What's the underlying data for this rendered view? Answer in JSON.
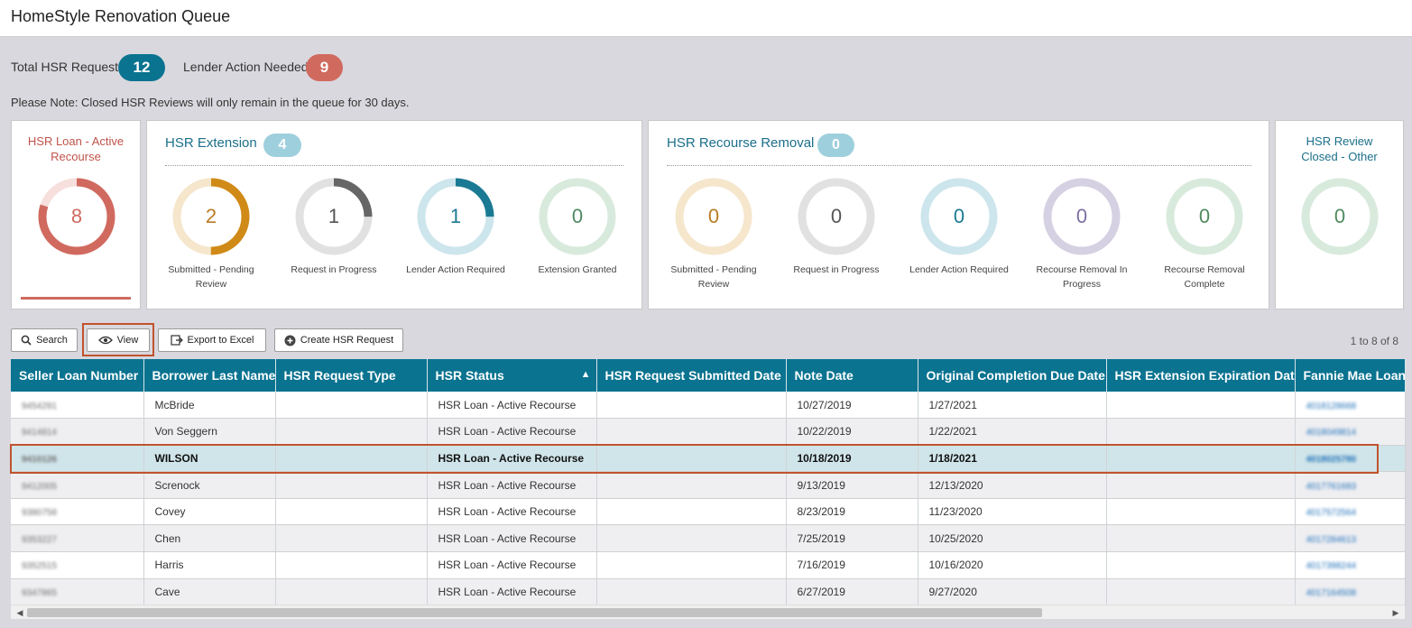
{
  "app": {
    "title": "HomeStyle Renovation Queue"
  },
  "summary": {
    "total_label": "Total HSR Requests",
    "total_count": "12",
    "lender_label": "Lender Action Needed",
    "lender_count": "9"
  },
  "note": "Please Note: Closed HSR Reviews will only remain in the queue for 30 days.",
  "cards": {
    "active": {
      "title_line1": "HSR Loan - Active",
      "title_line2": "Recourse",
      "value": "8",
      "color": "#d06a5f",
      "track": "#f6dfdc",
      "fraction": 0.8
    },
    "extension": {
      "title": "HSR Extension",
      "count": "4",
      "rings": [
        {
          "value": "2",
          "line1": "Submitted - Pending",
          "line2": "Review",
          "color": "#d08a17",
          "track": "#f5e6cc",
          "fraction": 0.5,
          "text_color": "#b97c25"
        },
        {
          "value": "1",
          "line1": "Request in Progress",
          "line2": "",
          "color": "#666666",
          "track": "#e1e1e1",
          "fraction": 0.25,
          "text_color": "#555555"
        },
        {
          "value": "1",
          "line1": "Lender Action Required",
          "line2": "",
          "color": "#1b7a93",
          "track": "#cde5ec",
          "fraction": 0.25,
          "text_color": "#1b7a93"
        },
        {
          "value": "0",
          "line1": "Extension Granted",
          "line2": "",
          "color": "#6aa07a",
          "track": "#d8eadc",
          "fraction": 0,
          "text_color": "#4f8a5f"
        }
      ]
    },
    "recourse": {
      "title": "HSR Recourse Removal",
      "count": "0",
      "rings": [
        {
          "value": "0",
          "line1": "Submitted - Pending",
          "line2": "Review",
          "color": "#d08a17",
          "track": "#f5e6cc",
          "fraction": 0,
          "text_color": "#b97c25"
        },
        {
          "value": "0",
          "line1": "Request in Progress",
          "line2": "",
          "color": "#666666",
          "track": "#e1e1e1",
          "fraction": 0,
          "text_color": "#555555"
        },
        {
          "value": "0",
          "line1": "Lender Action Required",
          "line2": "",
          "color": "#1b7a93",
          "track": "#cde5ec",
          "fraction": 0,
          "text_color": "#1b7a93"
        },
        {
          "value": "0",
          "line1": "Recourse Removal In",
          "line2": "Progress",
          "color": "#8c7bb0",
          "track": "#d6d0e3",
          "fraction": 0,
          "text_color": "#7d6fa3"
        },
        {
          "value": "0",
          "line1": "Recourse Removal",
          "line2": "Complete",
          "color": "#6aa07a",
          "track": "#d8eadc",
          "fraction": 0,
          "text_color": "#4f8a5f"
        }
      ]
    },
    "closed": {
      "title_line1": "HSR Review",
      "title_line2": "Closed - Other",
      "value": "0",
      "color": "#6aa07a",
      "track": "#d8eadc",
      "fraction": 0,
      "text_color": "#4f8a5f"
    }
  },
  "toolbar": {
    "search_label": "Search",
    "view_label": "View",
    "export_label": "Export to Excel",
    "create_label": "Create HSR Request",
    "pager": "1 to 8 of 8"
  },
  "table": {
    "columns": [
      "Seller Loan Number",
      "Borrower Last Name",
      "HSR Request Type",
      "HSR Status",
      "HSR Request Submitted Date",
      "Note Date",
      "Original Completion Due Date",
      "HSR Extension Expiration Date",
      "Fannie Mae Loan #"
    ],
    "rows": [
      {
        "seller": "9454291",
        "borrower": "McBride",
        "type": "",
        "status": "HSR Loan - Active Recourse",
        "submitted": "",
        "note_date": "10/27/2019",
        "due": "1/27/2021",
        "ext": "",
        "fnma": "4018128668"
      },
      {
        "seller": "9414814",
        "borrower": "Von Seggern",
        "type": "",
        "status": "HSR Loan - Active Recourse",
        "submitted": "",
        "note_date": "10/22/2019",
        "due": "1/22/2021",
        "ext": "",
        "fnma": "4018049814"
      },
      {
        "seller": "9410126",
        "borrower": "WILSON",
        "type": "",
        "status": "HSR Loan - Active Recourse",
        "submitted": "",
        "note_date": "10/18/2019",
        "due": "1/18/2021",
        "ext": "",
        "fnma": "4018025780"
      },
      {
        "seller": "9412005",
        "borrower": "Screnock",
        "type": "",
        "status": "HSR Loan - Active Recourse",
        "submitted": "",
        "note_date": "9/13/2019",
        "due": "12/13/2020",
        "ext": "",
        "fnma": "4017761683"
      },
      {
        "seller": "9380758",
        "borrower": "Covey",
        "type": "",
        "status": "HSR Loan - Active Recourse",
        "submitted": "",
        "note_date": "8/23/2019",
        "due": "11/23/2020",
        "ext": "",
        "fnma": "4017572564"
      },
      {
        "seller": "9353227",
        "borrower": "Chen",
        "type": "",
        "status": "HSR Loan - Active Recourse",
        "submitted": "",
        "note_date": "7/25/2019",
        "due": "10/25/2020",
        "ext": "",
        "fnma": "4017284613"
      },
      {
        "seller": "9352515",
        "borrower": "Harris",
        "type": "",
        "status": "HSR Loan - Active Recourse",
        "submitted": "",
        "note_date": "7/16/2019",
        "due": "10/16/2020",
        "ext": "",
        "fnma": "4017398244"
      },
      {
        "seller": "9347865",
        "borrower": "Cave",
        "type": "",
        "status": "HSR Loan - Active Recourse",
        "submitted": "",
        "note_date": "6/27/2019",
        "due": "9/27/2020",
        "ext": "",
        "fnma": "4017164508"
      }
    ],
    "selected_row_index": 2
  },
  "colors": {
    "accent": "#0a7390",
    "total_pill": "#0a7390",
    "lender_pill": "#d06a5f",
    "highlight": "#c0532d"
  }
}
